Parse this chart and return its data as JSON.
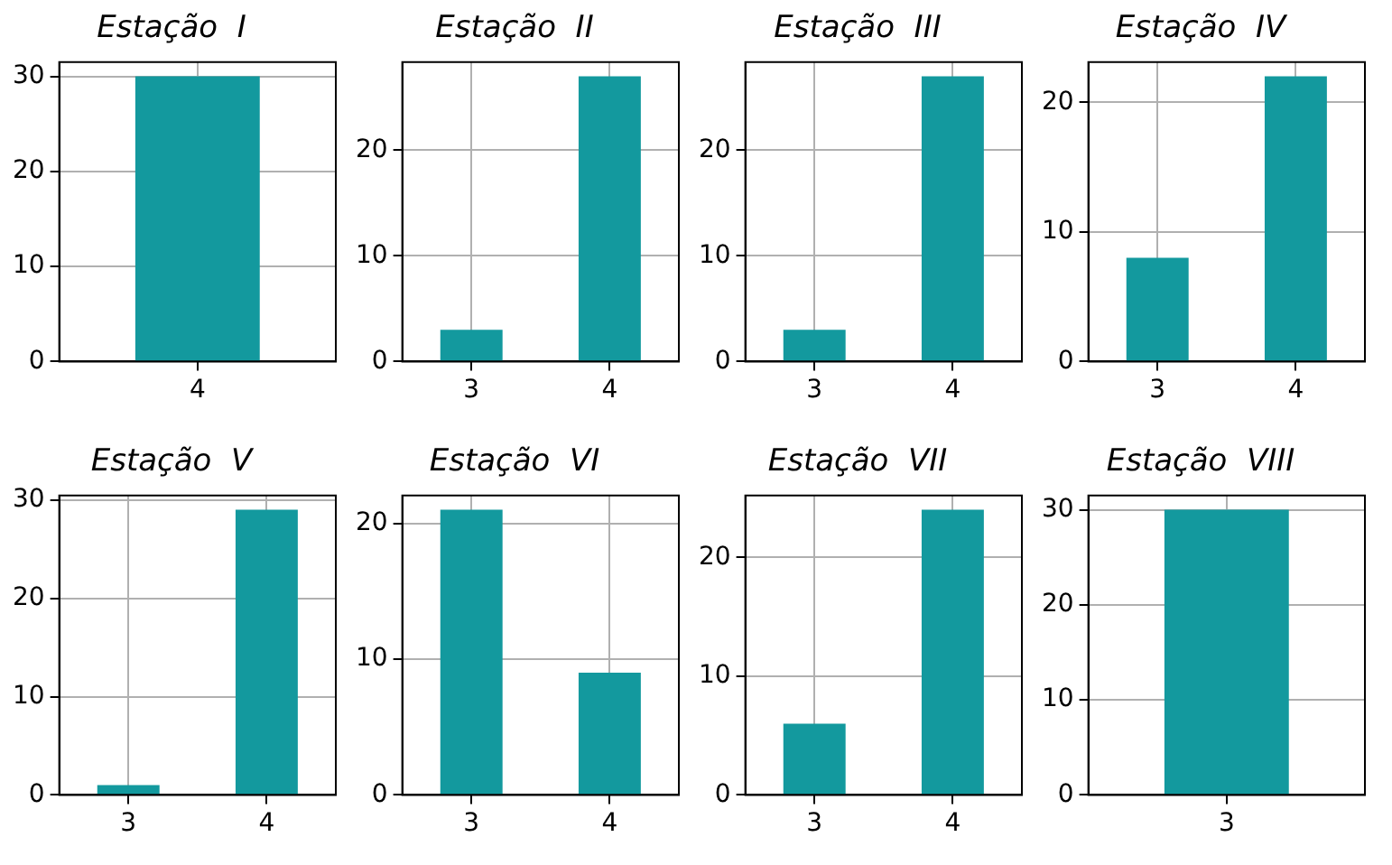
{
  "chart_data": [
    {
      "type": "bar",
      "title": "Estação  I",
      "categories": [
        "4"
      ],
      "values": [
        30
      ],
      "color": "#13999e",
      "ylim": [
        0,
        31.5
      ],
      "yticks": [
        0,
        10,
        20,
        30
      ],
      "grid": true
    },
    {
      "type": "bar",
      "title": "Estação  II",
      "categories": [
        "3",
        "4"
      ],
      "values": [
        3,
        27
      ],
      "color": "#13999e",
      "ylim": [
        0,
        28.35
      ],
      "yticks": [
        0,
        10,
        20
      ],
      "grid": true
    },
    {
      "type": "bar",
      "title": "Estação  III",
      "categories": [
        "3",
        "4"
      ],
      "values": [
        3,
        27
      ],
      "color": "#13999e",
      "ylim": [
        0,
        28.35
      ],
      "yticks": [
        0,
        10,
        20
      ],
      "grid": true
    },
    {
      "type": "bar",
      "title": "Estação  IV",
      "categories": [
        "3",
        "4"
      ],
      "values": [
        8,
        22
      ],
      "color": "#13999e",
      "ylim": [
        0,
        23.1
      ],
      "yticks": [
        0,
        10,
        20
      ],
      "grid": true
    },
    {
      "type": "bar",
      "title": "Estação  V",
      "categories": [
        "3",
        "4"
      ],
      "values": [
        1,
        29
      ],
      "color": "#13999e",
      "ylim": [
        0,
        30.45
      ],
      "yticks": [
        0,
        10,
        20,
        30
      ],
      "grid": true
    },
    {
      "type": "bar",
      "title": "Estação  VI",
      "categories": [
        "3",
        "4"
      ],
      "values": [
        21,
        9
      ],
      "color": "#13999e",
      "ylim": [
        0,
        22.05
      ],
      "yticks": [
        0,
        10,
        20
      ],
      "grid": true
    },
    {
      "type": "bar",
      "title": "Estação  VII",
      "categories": [
        "3",
        "4"
      ],
      "values": [
        6,
        24
      ],
      "color": "#13999e",
      "ylim": [
        0,
        25.2
      ],
      "yticks": [
        0,
        10,
        20
      ],
      "grid": true
    },
    {
      "type": "bar",
      "title": "Estação  VIII",
      "categories": [
        "3"
      ],
      "values": [
        30
      ],
      "color": "#13999e",
      "ylim": [
        0,
        31.5
      ],
      "yticks": [
        0,
        10,
        20,
        30
      ],
      "grid": true
    }
  ]
}
